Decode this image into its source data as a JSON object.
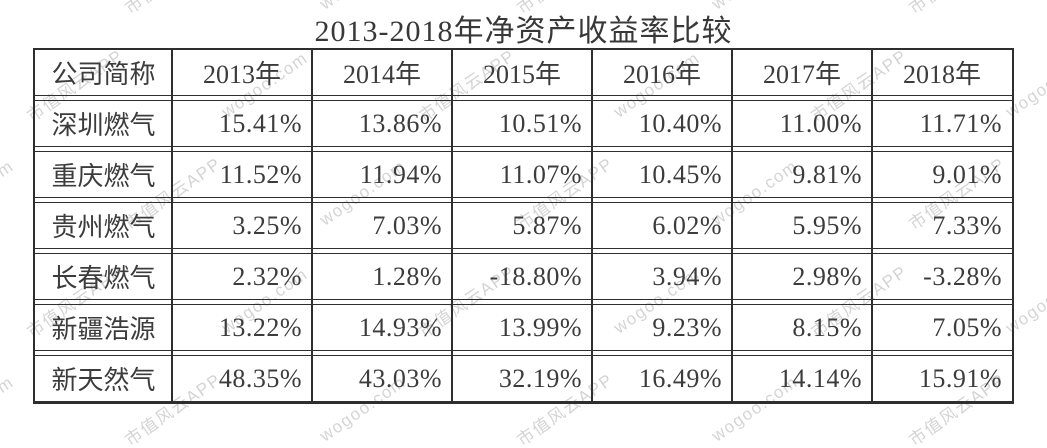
{
  "title": "2013-2018年净资产收益率比较",
  "watermark": {
    "brand": "市值风云APP",
    "site": "wogoo.com"
  },
  "chart_data": {
    "type": "table",
    "title": "2013-2018年净资产收益率比较",
    "columns": [
      "公司简称",
      "2013年",
      "2014年",
      "2015年",
      "2016年",
      "2017年",
      "2018年"
    ],
    "rows": [
      {
        "company": "深圳燃气",
        "values": [
          "15.41%",
          "13.86%",
          "10.51%",
          "10.40%",
          "11.00%",
          "11.71%"
        ]
      },
      {
        "company": "重庆燃气",
        "values": [
          "11.52%",
          "11.94%",
          "11.07%",
          "10.45%",
          "9.81%",
          "9.01%"
        ]
      },
      {
        "company": "贵州燃气",
        "values": [
          "3.25%",
          "7.03%",
          "5.87%",
          "6.02%",
          "5.95%",
          "7.33%"
        ]
      },
      {
        "company": "长春燃气",
        "values": [
          "2.32%",
          "1.28%",
          "-18.80%",
          "3.94%",
          "2.98%",
          "-3.28%"
        ]
      },
      {
        "company": "新疆浩源",
        "values": [
          "13.22%",
          "14.93%",
          "13.99%",
          "9.23%",
          "8.15%",
          "7.05%"
        ]
      },
      {
        "company": "新天然气",
        "values": [
          "48.35%",
          "43.03%",
          "32.19%",
          "16.49%",
          "14.14%",
          "15.91%"
        ]
      }
    ]
  }
}
